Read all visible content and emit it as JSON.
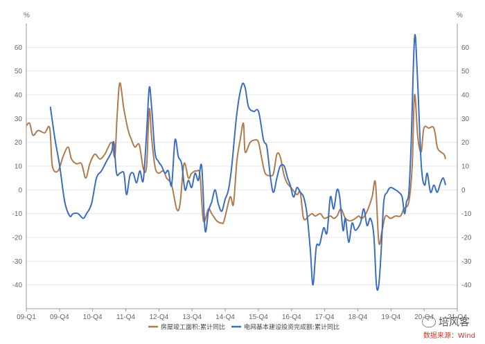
{
  "chart_data": {
    "type": "line",
    "unit_left": "%",
    "unit_right": "%",
    "ylim": [
      -50,
      70
    ],
    "yticks": [
      -40,
      -30,
      -20,
      -10,
      0,
      10,
      20,
      30,
      40,
      50,
      60
    ],
    "grid": true,
    "legend_placement": "bottom-center",
    "x_categories": [
      "09-Q1",
      "09-Q4",
      "10-Q4",
      "11-Q4",
      "12-Q4",
      "13-Q4",
      "14-Q4",
      "15-Q4",
      "16-Q4",
      "17-Q4",
      "18-Q4",
      "19-Q4",
      "20-Q4",
      "21-Q4"
    ],
    "x_range": [
      2009.0,
      2021.9
    ],
    "series": [
      {
        "name": "房屋竣工面积:累计同比",
        "color": "#b07a4f",
        "points": [
          [
            2009.0,
            27
          ],
          [
            2009.1,
            28
          ],
          [
            2009.2,
            23
          ],
          [
            2009.35,
            25
          ],
          [
            2009.55,
            24
          ],
          [
            2009.7,
            26
          ],
          [
            2009.78,
            10
          ],
          [
            2009.95,
            8
          ],
          [
            2010.1,
            14
          ],
          [
            2010.25,
            18
          ],
          [
            2010.35,
            13
          ],
          [
            2010.5,
            11
          ],
          [
            2010.65,
            11
          ],
          [
            2010.78,
            5
          ],
          [
            2010.9,
            11
          ],
          [
            2011.05,
            15
          ],
          [
            2011.2,
            13
          ],
          [
            2011.35,
            15
          ],
          [
            2011.55,
            20
          ],
          [
            2011.65,
            14
          ],
          [
            2011.72,
            32
          ],
          [
            2011.8,
            45
          ],
          [
            2011.92,
            34
          ],
          [
            2012.05,
            25
          ],
          [
            2012.15,
            21
          ],
          [
            2012.25,
            18
          ],
          [
            2012.38,
            19
          ],
          [
            2012.5,
            9
          ],
          [
            2012.6,
            10
          ],
          [
            2012.68,
            34
          ],
          [
            2012.75,
            22
          ],
          [
            2012.85,
            10
          ],
          [
            2012.95,
            7
          ],
          [
            2013.1,
            8
          ],
          [
            2013.2,
            5
          ],
          [
            2013.35,
            2
          ],
          [
            2013.5,
            -8
          ],
          [
            2013.6,
            -6
          ],
          [
            2013.72,
            11
          ],
          [
            2013.85,
            5
          ],
          [
            2013.95,
            7
          ],
          [
            2014.1,
            8
          ],
          [
            2014.2,
            6
          ],
          [
            2014.3,
            -13
          ],
          [
            2014.45,
            -8
          ],
          [
            2014.55,
            -10
          ],
          [
            2014.7,
            -13
          ],
          [
            2014.85,
            -14
          ],
          [
            2014.92,
            -13
          ],
          [
            2015.1,
            -3
          ],
          [
            2015.2,
            -6
          ],
          [
            2015.3,
            12
          ],
          [
            2015.4,
            21
          ],
          [
            2015.5,
            28
          ],
          [
            2015.55,
            16
          ],
          [
            2015.7,
            20
          ],
          [
            2015.85,
            21
          ],
          [
            2015.95,
            20
          ],
          [
            2016.05,
            13
          ],
          [
            2016.15,
            7
          ],
          [
            2016.3,
            6
          ],
          [
            2016.4,
            7
          ],
          [
            2016.5,
            15
          ],
          [
            2016.6,
            14
          ],
          [
            2016.7,
            7
          ],
          [
            2016.8,
            3
          ],
          [
            2016.92,
            1
          ],
          [
            2017.1,
            -2
          ],
          [
            2017.2,
            -1
          ],
          [
            2017.3,
            -12
          ],
          [
            2017.45,
            -11
          ],
          [
            2017.55,
            -10
          ],
          [
            2017.65,
            -11
          ],
          [
            2017.8,
            -10
          ],
          [
            2017.92,
            -12
          ],
          [
            2018.1,
            -11
          ],
          [
            2018.2,
            -12
          ],
          [
            2018.3,
            -11
          ],
          [
            2018.42,
            -8
          ],
          [
            2018.55,
            -12
          ],
          [
            2018.7,
            -13
          ],
          [
            2018.85,
            -12
          ],
          [
            2018.95,
            -11
          ],
          [
            2019.05,
            -12
          ],
          [
            2019.2,
            -9
          ],
          [
            2019.35,
            -3
          ],
          [
            2019.45,
            3
          ],
          [
            2019.55,
            -22
          ],
          [
            2019.65,
            -17
          ],
          [
            2019.75,
            -11
          ],
          [
            2019.9,
            -12
          ],
          [
            2020.05,
            -11
          ],
          [
            2020.2,
            -11
          ],
          [
            2020.3,
            -8
          ],
          [
            2020.45,
            -5
          ],
          [
            2020.55,
            10
          ],
          [
            2020.62,
            40
          ],
          [
            2020.72,
            22
          ],
          [
            2020.82,
            16
          ],
          [
            2020.9,
            26
          ],
          [
            2021.05,
            26
          ],
          [
            2021.2,
            26
          ],
          [
            2021.3,
            18
          ],
          [
            2021.4,
            16
          ],
          [
            2021.5,
            15
          ],
          [
            2021.55,
            13
          ]
        ]
      },
      {
        "name": "电网基本建设投资完成额:累计同比",
        "color": "#3a6cc0",
        "points": [
          [
            2009.72,
            35
          ],
          [
            2009.85,
            22
          ],
          [
            2010.0,
            10
          ],
          [
            2010.15,
            -5
          ],
          [
            2010.3,
            -11
          ],
          [
            2010.4,
            -10
          ],
          [
            2010.55,
            -10
          ],
          [
            2010.7,
            -12
          ],
          [
            2010.8,
            -10
          ],
          [
            2010.95,
            -6
          ],
          [
            2011.1,
            5
          ],
          [
            2011.25,
            8
          ],
          [
            2011.4,
            12
          ],
          [
            2011.55,
            16
          ],
          [
            2011.62,
            20
          ],
          [
            2011.7,
            7
          ],
          [
            2011.8,
            7
          ],
          [
            2011.92,
            7
          ],
          [
            2012.0,
            -2
          ],
          [
            2012.1,
            6
          ],
          [
            2012.2,
            7
          ],
          [
            2012.3,
            3
          ],
          [
            2012.4,
            8
          ],
          [
            2012.5,
            4
          ],
          [
            2012.6,
            24
          ],
          [
            2012.68,
            43
          ],
          [
            2012.75,
            35
          ],
          [
            2012.85,
            16
          ],
          [
            2012.95,
            12
          ],
          [
            2013.05,
            10
          ],
          [
            2013.15,
            7
          ],
          [
            2013.25,
            8
          ],
          [
            2013.35,
            2
          ],
          [
            2013.45,
            21
          ],
          [
            2013.55,
            14
          ],
          [
            2013.65,
            11
          ],
          [
            2013.75,
            0
          ],
          [
            2013.85,
            4
          ],
          [
            2013.95,
            1
          ],
          [
            2014.05,
            7
          ],
          [
            2014.15,
            4
          ],
          [
            2014.25,
            10
          ],
          [
            2014.35,
            -17
          ],
          [
            2014.45,
            -9
          ],
          [
            2014.55,
            -5
          ],
          [
            2014.65,
            0
          ],
          [
            2014.75,
            -6
          ],
          [
            2014.85,
            -9
          ],
          [
            2014.95,
            -4
          ],
          [
            2015.05,
            0
          ],
          [
            2015.15,
            10
          ],
          [
            2015.3,
            32
          ],
          [
            2015.45,
            44
          ],
          [
            2015.55,
            43
          ],
          [
            2015.65,
            35
          ],
          [
            2015.8,
            33
          ],
          [
            2015.95,
            33
          ],
          [
            2016.1,
            21
          ],
          [
            2016.2,
            18
          ],
          [
            2016.32,
            4
          ],
          [
            2016.4,
            -1
          ],
          [
            2016.5,
            5
          ],
          [
            2016.6,
            10
          ],
          [
            2016.72,
            10
          ],
          [
            2016.82,
            5
          ],
          [
            2016.9,
            2
          ],
          [
            2017.0,
            -3
          ],
          [
            2017.1,
            1
          ],
          [
            2017.2,
            -1
          ],
          [
            2017.3,
            -3
          ],
          [
            2017.4,
            -10
          ],
          [
            2017.5,
            -25
          ],
          [
            2017.58,
            -40
          ],
          [
            2017.68,
            -24
          ],
          [
            2017.78,
            -23
          ],
          [
            2017.9,
            -16
          ],
          [
            2018.0,
            -18
          ],
          [
            2018.1,
            -3
          ],
          [
            2018.2,
            -8
          ],
          [
            2018.3,
            0
          ],
          [
            2018.38,
            -3
          ],
          [
            2018.48,
            -17
          ],
          [
            2018.55,
            -12
          ],
          [
            2018.65,
            -22
          ],
          [
            2018.75,
            -14
          ],
          [
            2018.85,
            -17
          ],
          [
            2019.0,
            -14
          ],
          [
            2019.1,
            -8
          ],
          [
            2019.2,
            -15
          ],
          [
            2019.3,
            -12
          ],
          [
            2019.4,
            -19
          ],
          [
            2019.48,
            -40
          ],
          [
            2019.55,
            -40
          ],
          [
            2019.62,
            -26
          ],
          [
            2019.7,
            -5
          ],
          [
            2019.8,
            -1
          ],
          [
            2019.9,
            1
          ],
          [
            2020.05,
            0
          ],
          [
            2020.15,
            -1
          ],
          [
            2020.25,
            -3
          ],
          [
            2020.32,
            -10
          ],
          [
            2020.38,
            -5
          ],
          [
            2020.45,
            -1
          ],
          [
            2020.52,
            20
          ],
          [
            2020.62,
            64
          ],
          [
            2020.7,
            50
          ],
          [
            2020.82,
            11
          ],
          [
            2020.92,
            2
          ],
          [
            2021.0,
            7
          ],
          [
            2021.1,
            -1
          ],
          [
            2021.2,
            2
          ],
          [
            2021.3,
            -1
          ],
          [
            2021.4,
            3
          ],
          [
            2021.48,
            5
          ],
          [
            2021.55,
            2
          ]
        ]
      }
    ]
  },
  "watermark": {
    "brand": "培风客",
    "brand_icon": "wechat-icon"
  },
  "source_text": "数据来源：Wind"
}
